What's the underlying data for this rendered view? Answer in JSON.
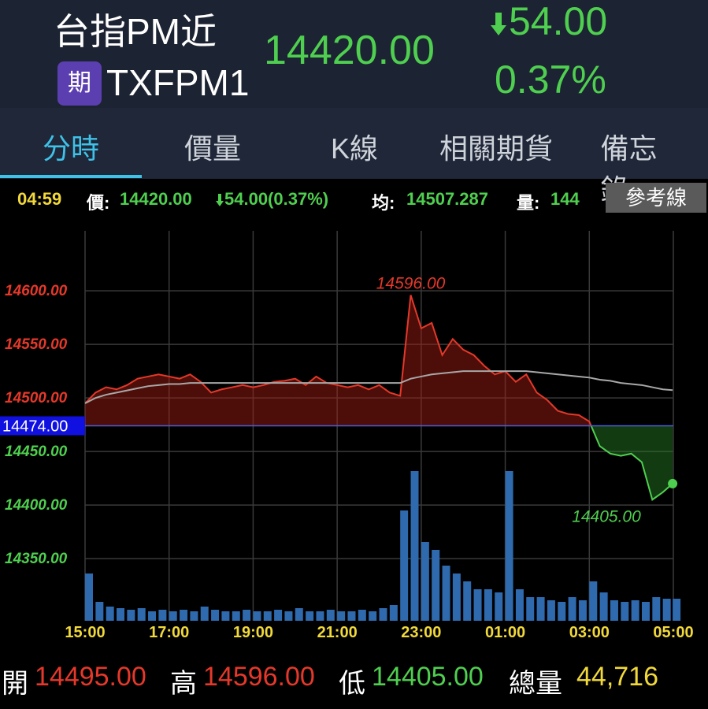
{
  "header": {
    "title": "台指PM近",
    "badge": "期",
    "code": "TXFPM1",
    "price": "14420.00",
    "change": "54.00",
    "change_pct": "0.37%"
  },
  "tabs": [
    "分時",
    "價量",
    "K線",
    "相關期貨",
    "備忘錄"
  ],
  "info_bar": {
    "time": "04:59",
    "price_label": "價:",
    "price": "14420.00",
    "change": "54.00(0.37%)",
    "avg_label": "均:",
    "avg": "14507.287",
    "volume_label": "量:",
    "volume": "144",
    "button": "參考線"
  },
  "chart_data": {
    "type": "line",
    "x": [
      "15:00",
      "15:15",
      "15:30",
      "15:45",
      "16:00",
      "16:15",
      "16:30",
      "16:45",
      "17:00",
      "17:15",
      "17:30",
      "17:45",
      "18:00",
      "18:15",
      "18:30",
      "18:45",
      "19:00",
      "19:15",
      "19:30",
      "19:45",
      "20:00",
      "20:15",
      "20:30",
      "20:45",
      "21:00",
      "21:15",
      "21:30",
      "21:45",
      "22:00",
      "22:15",
      "22:30",
      "22:45",
      "23:00",
      "23:15",
      "23:30",
      "23:45",
      "00:00",
      "00:15",
      "00:30",
      "00:45",
      "01:00",
      "01:15",
      "01:30",
      "01:45",
      "02:00",
      "02:15",
      "02:30",
      "02:45",
      "03:00",
      "03:15",
      "03:30",
      "03:45",
      "04:00",
      "04:15",
      "04:30",
      "04:45",
      "04:59"
    ],
    "values": [
      14495,
      14505,
      14510,
      14508,
      14512,
      14518,
      14520,
      14522,
      14520,
      14518,
      14522,
      14515,
      14505,
      14508,
      14510,
      14512,
      14510,
      14512,
      14515,
      14516,
      14518,
      14512,
      14520,
      14514,
      14512,
      14510,
      14512,
      14508,
      14512,
      14505,
      14502,
      14596,
      14565,
      14570,
      14540,
      14555,
      14545,
      14540,
      14530,
      14522,
      14525,
      14515,
      14522,
      14505,
      14498,
      14488,
      14485,
      14484,
      14478,
      14455,
      14448,
      14446,
      14448,
      14440,
      14405,
      14412,
      14420
    ],
    "average": [
      14495,
      14500,
      14503,
      14505,
      14507,
      14509,
      14511,
      14512,
      14513,
      14513,
      14514,
      14514,
      14514,
      14514,
      14514,
      14514,
      14514,
      14514,
      14514,
      14514,
      14514,
      14514,
      14514,
      14514,
      14514,
      14514,
      14514,
      14514,
      14514,
      14514,
      14514,
      14518,
      14520,
      14522,
      14523,
      14524,
      14525,
      14525,
      14525,
      14525,
      14525,
      14525,
      14525,
      14524,
      14523,
      14522,
      14521,
      14520,
      14519,
      14517,
      14516,
      14514,
      14513,
      14512,
      14510,
      14508,
      14507.287
    ],
    "volume": [
      300,
      120,
      90,
      80,
      70,
      80,
      60,
      70,
      60,
      70,
      60,
      90,
      70,
      60,
      60,
      70,
      60,
      60,
      70,
      60,
      80,
      60,
      60,
      70,
      60,
      60,
      70,
      60,
      80,
      100,
      700,
      950,
      500,
      450,
      350,
      300,
      250,
      200,
      200,
      180,
      950,
      200,
      150,
      150,
      130,
      120,
      150,
      130,
      250,
      180,
      130,
      120,
      130,
      120,
      150,
      140,
      140
    ],
    "volume_lim": [
      0,
      1000
    ],
    "xlim": [
      "15:00",
      "05:00"
    ],
    "xticks": [
      "15:00",
      "17:00",
      "19:00",
      "21:00",
      "23:00",
      "01:00",
      "03:00",
      "05:00"
    ],
    "ylim": [
      14292,
      14656
    ],
    "yticks": [
      {
        "value": 14350,
        "label": "14350.00"
      },
      {
        "value": 14400,
        "label": "14400.00"
      },
      {
        "value": 14450,
        "label": "14450.00"
      },
      {
        "value": 14500,
        "label": "14500.00"
      },
      {
        "value": 14550,
        "label": "14550.00"
      },
      {
        "value": 14600,
        "label": "14600.00"
      }
    ],
    "reference": {
      "value": 14474,
      "label": "14474.00"
    },
    "annotations": [
      {
        "x": "22:45",
        "value": 14596,
        "label": "14596.00"
      },
      {
        "x": "04:30",
        "value": 14405,
        "label": "14405.00"
      }
    ],
    "grid": true,
    "up_color": "#e5382a",
    "down_color": "#4fcf4f",
    "average_color": "#a8a8a8",
    "volume_color": "#2f6aae"
  },
  "footer": [
    {
      "label": "開",
      "value": "14495.00"
    },
    {
      "label": "高",
      "value": "14596.00"
    },
    {
      "label": "低",
      "value": "14405.00"
    },
    {
      "label": "總量",
      "value": "44,716"
    }
  ]
}
